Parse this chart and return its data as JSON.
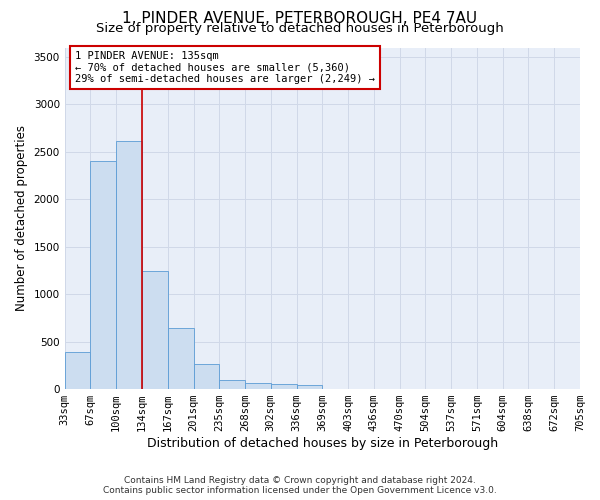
{
  "title": "1, PINDER AVENUE, PETERBOROUGH, PE4 7AU",
  "subtitle": "Size of property relative to detached houses in Peterborough",
  "xlabel": "Distribution of detached houses by size in Peterborough",
  "ylabel": "Number of detached properties",
  "footer_line1": "Contains HM Land Registry data © Crown copyright and database right 2024.",
  "footer_line2": "Contains public sector information licensed under the Open Government Licence v3.0.",
  "bar_values": [
    390,
    2400,
    2610,
    1240,
    640,
    260,
    95,
    60,
    55,
    40,
    0,
    0,
    0,
    0,
    0,
    0,
    0,
    0,
    0,
    0
  ],
  "categories": [
    "33sqm",
    "67sqm",
    "100sqm",
    "134sqm",
    "167sqm",
    "201sqm",
    "235sqm",
    "268sqm",
    "302sqm",
    "336sqm",
    "369sqm",
    "403sqm",
    "436sqm",
    "470sqm",
    "504sqm",
    "537sqm",
    "571sqm",
    "604sqm",
    "638sqm",
    "672sqm",
    "705sqm"
  ],
  "bar_color": "#ccddf0",
  "bar_edge_color": "#5b9bd5",
  "grid_color": "#d0d8e8",
  "background_color": "#e8eef8",
  "vline_x": 3,
  "vline_color": "#cc0000",
  "annotation_line1": "1 PINDER AVENUE: 135sqm",
  "annotation_line2": "← 70% of detached houses are smaller (5,360)",
  "annotation_line3": "29% of semi-detached houses are larger (2,249) →",
  "annotation_box_color": "#cc0000",
  "ylim": [
    0,
    3600
  ],
  "yticks": [
    0,
    500,
    1000,
    1500,
    2000,
    2500,
    3000,
    3500
  ],
  "title_fontsize": 11,
  "subtitle_fontsize": 9.5,
  "xlabel_fontsize": 9,
  "ylabel_fontsize": 8.5,
  "tick_fontsize": 7.5,
  "annotation_fontsize": 7.5
}
